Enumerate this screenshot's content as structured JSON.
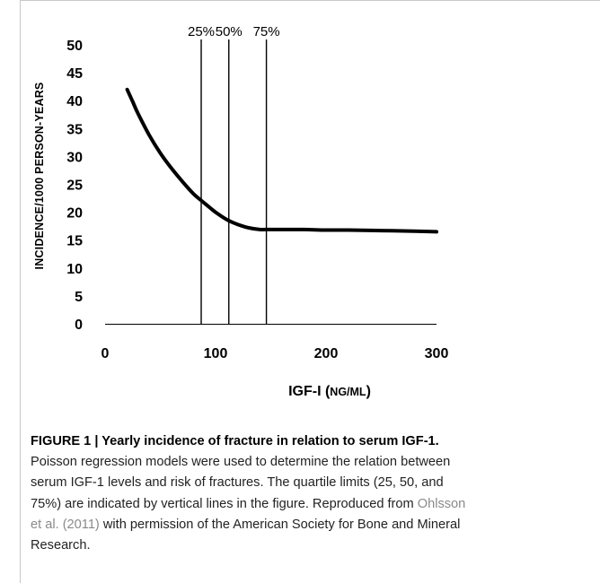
{
  "chart_data": {
    "type": "line",
    "xlabel": "IGF-I",
    "xlabel_unit": "NG/ML",
    "ylabel": "INCIDENCE/1000 PERSON-YEARS",
    "xlim": [
      0,
      300
    ],
    "ylim": [
      0,
      50
    ],
    "x_ticks": [
      0,
      100,
      200,
      300
    ],
    "y_ticks": [
      0,
      5,
      10,
      15,
      20,
      25,
      30,
      35,
      40,
      45,
      50
    ],
    "grid": false,
    "legend": "none",
    "series": [
      {
        "x": [
          20,
          25,
          30,
          40,
          50,
          60,
          70,
          80,
          87,
          95,
          100,
          110,
          120,
          130,
          140,
          146,
          160,
          180,
          200,
          220,
          250,
          280,
          300
        ],
        "y": [
          42,
          39.8,
          37.6,
          33.8,
          30.6,
          27.9,
          25.5,
          23.3,
          22.1,
          20.8,
          20.0,
          18.7,
          17.8,
          17.2,
          16.9,
          16.9,
          16.9,
          16.9,
          16.8,
          16.8,
          16.7,
          16.6,
          16.5
        ],
        "color": "#000000"
      }
    ],
    "quartile_lines": [
      {
        "x": 87,
        "label": "25%"
      },
      {
        "x": 112,
        "label": "50%"
      },
      {
        "x": 146,
        "label": "75%"
      }
    ]
  },
  "caption": {
    "title": "FIGURE 1 | Yearly incidence of fracture in relation to serum IGF-1.",
    "line1": "Poisson regression models were used to determine the relation between",
    "line2": "serum IGF-1 levels and risk of fractures. The quartile limits (25, 50, and",
    "line3_a": "75%) are indicated by vertical lines in the figure. Reproduced from ",
    "line3_cite": "Ohlsson",
    "line4_cite": "et al. (2011)",
    "line4_b": " with permission of the American Society for Bone and Mineral",
    "line5": "Research."
  }
}
